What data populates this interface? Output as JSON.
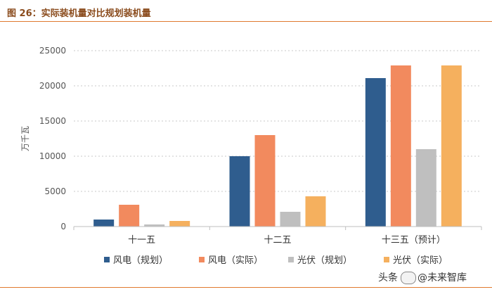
{
  "header": {
    "title": "图 26：实际装机量对比规划装机量"
  },
  "watermark": {
    "prefix": "头条",
    "name": "@未来智库"
  },
  "colors": {
    "accent_line": "#e07a2f",
    "grid": "#c8c8c8",
    "axis": "#bfbfbf"
  },
  "chart_data": {
    "type": "bar",
    "title": "实际装机量对比规划装机量",
    "ylabel": "万千瓦",
    "xlabel": "",
    "ylim": [
      0,
      25000
    ],
    "yticks": [
      0,
      5000,
      10000,
      15000,
      20000,
      25000
    ],
    "grid": true,
    "legend_position": "bottom",
    "categories": [
      "十一五",
      "十二五",
      "十三五（预计）"
    ],
    "series": [
      {
        "name": "风电（规划）",
        "color": "#2f5d8e",
        "values": [
          1000,
          10000,
          21100
        ]
      },
      {
        "name": "风电（实际）",
        "color": "#f28a5e",
        "values": [
          3100,
          13000,
          22900
        ]
      },
      {
        "name": "光伏（规划）",
        "color": "#bfbfbf",
        "values": [
          300,
          2100,
          11000
        ]
      },
      {
        "name": "光伏（实际）",
        "color": "#f5b05e",
        "values": [
          800,
          4300,
          22900
        ]
      }
    ]
  }
}
